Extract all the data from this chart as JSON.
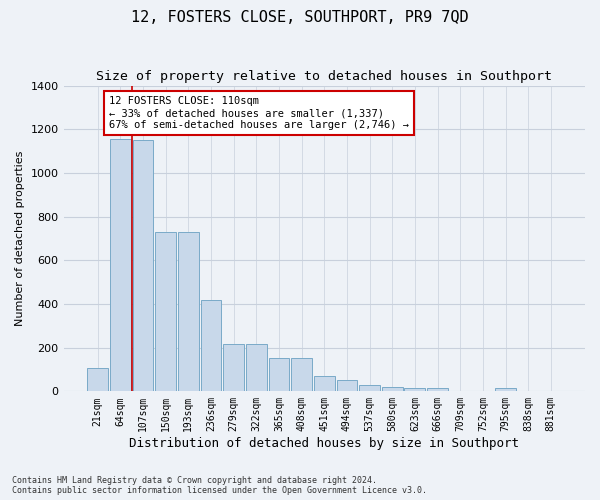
{
  "title": "12, FOSTERS CLOSE, SOUTHPORT, PR9 7QD",
  "subtitle": "Size of property relative to detached houses in Southport",
  "xlabel": "Distribution of detached houses by size in Southport",
  "ylabel": "Number of detached properties",
  "categories": [
    "21sqm",
    "64sqm",
    "107sqm",
    "150sqm",
    "193sqm",
    "236sqm",
    "279sqm",
    "322sqm",
    "365sqm",
    "408sqm",
    "451sqm",
    "494sqm",
    "537sqm",
    "580sqm",
    "623sqm",
    "666sqm",
    "709sqm",
    "752sqm",
    "795sqm",
    "838sqm",
    "881sqm"
  ],
  "values": [
    107,
    1155,
    1150,
    730,
    730,
    420,
    218,
    218,
    152,
    152,
    70,
    50,
    30,
    20,
    15,
    15,
    0,
    0,
    15,
    0,
    0
  ],
  "bar_color": "#c8d8ea",
  "bar_edge_color": "#7aaac8",
  "vline_color": "#cc0000",
  "annotation_text": "12 FOSTERS CLOSE: 110sqm\n← 33% of detached houses are smaller (1,337)\n67% of semi-detached houses are larger (2,746) →",
  "annotation_box_color": "#ffffff",
  "annotation_box_edge": "#cc0000",
  "bg_color": "#eef2f7",
  "grid_color": "#d8dfe8",
  "footer": "Contains HM Land Registry data © Crown copyright and database right 2024.\nContains public sector information licensed under the Open Government Licence v3.0.",
  "ylim": [
    0,
    1400
  ],
  "title_fontsize": 11,
  "subtitle_fontsize": 9.5,
  "ylabel_fontsize": 8,
  "xlabel_fontsize": 9,
  "tick_fontsize": 7,
  "footer_fontsize": 6,
  "annot_fontsize": 7.5
}
